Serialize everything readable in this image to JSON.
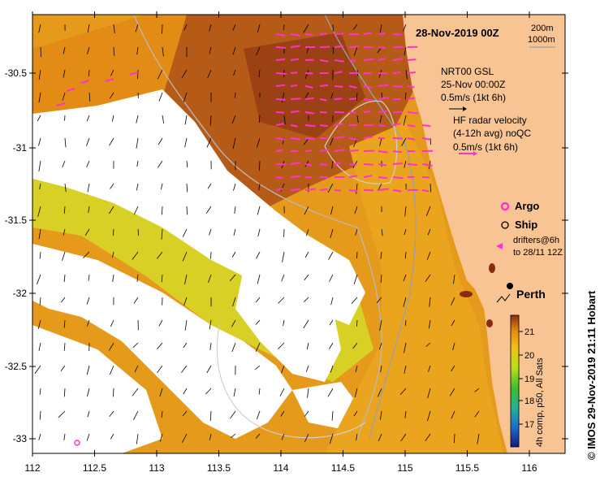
{
  "title": "28-Nov-2019 00Z",
  "depth_legend": {
    "c200": "200m",
    "c1000": "1000m"
  },
  "nrt_block": {
    "line1": "NRT00 GSL",
    "line2": "25-Nov 00:00Z",
    "scale": "0.5m/s (1kt 6h)"
  },
  "hf_block": {
    "line1": "HF radar velocity",
    "line2": "(4-12h avg) noQC",
    "scale": "0.5m/s (1kt 6h)"
  },
  "markers": {
    "argo": "Argo",
    "ship": "Ship",
    "drifters1": "drifters@6h",
    "drifters2": "to 28/11 12Z"
  },
  "city": "Perth",
  "y_ticks": [
    "-30.5",
    "-31",
    "-31.5",
    "-32",
    "-32.5",
    "-33"
  ],
  "x_ticks": [
    "112",
    "112.5",
    "113",
    "113.5",
    "114",
    "114.5",
    "115",
    "115.5",
    "116"
  ],
  "colorbar": {
    "ticks": [
      "21",
      "20",
      "19",
      "18",
      "17"
    ],
    "label": "4h comp, p50, All Sats"
  },
  "credit": "© IMOS 29-Nov-2019 21:11 Hobart",
  "colors": {
    "land": "#f9c494",
    "argo": "#ff33cc",
    "hf": "#ff33cc",
    "sst_warm": "#e08a10",
    "sst_hot": "#a34a14"
  }
}
